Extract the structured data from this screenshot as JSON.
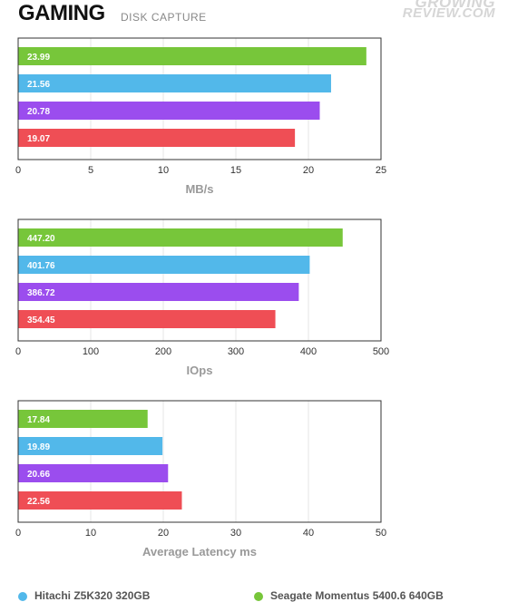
{
  "header": {
    "title": "GAMING",
    "subtitle": "DISK CAPTURE"
  },
  "watermark": {
    "line1": "GROWING",
    "line2": "REVIEW.COM"
  },
  "colors": {
    "green": "#77c63a",
    "blue": "#52b8ea",
    "purple": "#9b4dee",
    "red": "#ef4e55"
  },
  "chart_data": [
    {
      "type": "bar",
      "orientation": "horizontal",
      "title": "",
      "xlabel": "MB/s",
      "xlim": [
        0,
        25
      ],
      "ticks": [
        "0",
        "5",
        "10",
        "15",
        "20",
        "25"
      ],
      "grid": true,
      "values": [
        23.99,
        21.56,
        20.78,
        19.07
      ],
      "labels": [
        "23.99",
        "21.56",
        "20.78",
        "19.07"
      ],
      "colors": [
        "#77c63a",
        "#52b8ea",
        "#9b4dee",
        "#ef4e55"
      ]
    },
    {
      "type": "bar",
      "orientation": "horizontal",
      "title": "",
      "xlabel": "IOps",
      "xlim": [
        0,
        500
      ],
      "ticks": [
        "0",
        "100",
        "200",
        "300",
        "400",
        "500"
      ],
      "grid": true,
      "values": [
        447.2,
        401.76,
        386.72,
        354.45
      ],
      "labels": [
        "447.20",
        "401.76",
        "386.72",
        "354.45"
      ],
      "colors": [
        "#77c63a",
        "#52b8ea",
        "#9b4dee",
        "#ef4e55"
      ]
    },
    {
      "type": "bar",
      "orientation": "horizontal",
      "title": "",
      "xlabel": "Average Latency ms",
      "xlim": [
        0,
        50
      ],
      "ticks": [
        "0",
        "10",
        "20",
        "30",
        "40",
        "50"
      ],
      "grid": true,
      "values": [
        17.84,
        19.89,
        20.66,
        22.56
      ],
      "labels": [
        "17.84",
        "19.89",
        "20.66",
        "22.56"
      ],
      "colors": [
        "#77c63a",
        "#52b8ea",
        "#9b4dee",
        "#ef4e55"
      ]
    }
  ],
  "legend": {
    "items": [
      {
        "label": "Hitachi Z5K320 320GB",
        "color": "#52b8ea"
      },
      {
        "label": "Seagate Momentus 5400.6 640GB",
        "color": "#77c63a"
      }
    ]
  }
}
